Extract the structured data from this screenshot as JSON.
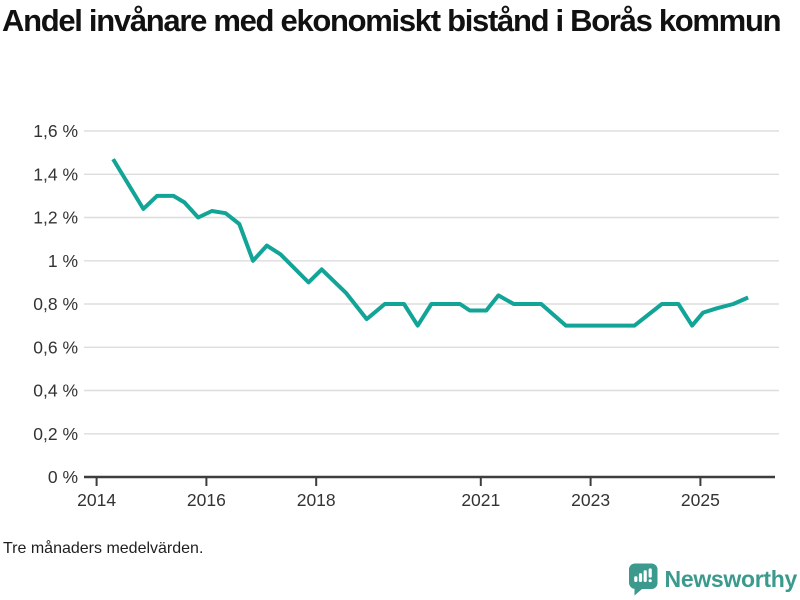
{
  "title": "Andel invånare med ekonomiskt bistånd i Borås kommun",
  "footnote": "Tre månaders medelvärden.",
  "logo": {
    "name": "Newsworthy",
    "color": "#3b9a8d"
  },
  "colors": {
    "background": "#ffffff",
    "title_text": "#111111",
    "tick_text": "#333333",
    "gridline": "#dddddd",
    "axis": "#3d3d3d",
    "line": "#12a496",
    "footnote_text": "#1f1f1f",
    "logo_teal": "#3b9a8d"
  },
  "chart_data": {
    "type": "line",
    "title": "Andel invånare med ekonomiskt bistånd i Borås kommun",
    "xlabel": "",
    "ylabel": "",
    "unit": "%",
    "xlim": [
      2013.77,
      2026.36
    ],
    "ylim": [
      0,
      1.6
    ],
    "grid": "horizontal",
    "legend": "none",
    "x_ticks": [
      {
        "pos": 2014,
        "label": "2014"
      },
      {
        "pos": 2016,
        "label": "2016"
      },
      {
        "pos": 2018,
        "label": "2018"
      },
      {
        "pos": 2021,
        "label": "2021"
      },
      {
        "pos": 2023,
        "label": "2023"
      },
      {
        "pos": 2025,
        "label": "2025"
      }
    ],
    "y_ticks": [
      {
        "value": 1.6,
        "label": "1,6 %"
      },
      {
        "value": 1.4,
        "label": "1,4 %"
      },
      {
        "value": 1.2,
        "label": "1,2 %"
      },
      {
        "value": 1.0,
        "label": "1 %"
      },
      {
        "value": 0.8,
        "label": "0,8 %"
      },
      {
        "value": 0.6,
        "label": "0,6 %"
      },
      {
        "value": 0.4,
        "label": "0,4 %"
      },
      {
        "value": 0.2,
        "label": "0,2 %"
      },
      {
        "value": 0,
        "label": "0 %"
      }
    ],
    "series": [
      {
        "name": "Andel invånare med ekonomiskt bistånd i Borås kommun (tre månaders medelvärden, %)",
        "color": "#12a496",
        "points": [
          [
            2014.3,
            1.47
          ],
          [
            2014.85,
            1.24
          ],
          [
            2015.1,
            1.3
          ],
          [
            2015.4,
            1.3
          ],
          [
            2015.6,
            1.27
          ],
          [
            2015.85,
            1.2
          ],
          [
            2016.1,
            1.23
          ],
          [
            2016.35,
            1.22
          ],
          [
            2016.6,
            1.17
          ],
          [
            2016.85,
            1.0
          ],
          [
            2017.1,
            1.07
          ],
          [
            2017.35,
            1.03
          ],
          [
            2017.86,
            0.9
          ],
          [
            2018.1,
            0.96
          ],
          [
            2018.55,
            0.85
          ],
          [
            2018.92,
            0.73
          ],
          [
            2019.25,
            0.8
          ],
          [
            2019.6,
            0.8
          ],
          [
            2019.85,
            0.7
          ],
          [
            2020.1,
            0.8
          ],
          [
            2020.62,
            0.8
          ],
          [
            2020.8,
            0.77
          ],
          [
            2021.1,
            0.77
          ],
          [
            2021.32,
            0.84
          ],
          [
            2021.6,
            0.8
          ],
          [
            2022.1,
            0.8
          ],
          [
            2022.55,
            0.7
          ],
          [
            2023.8,
            0.7
          ],
          [
            2024.3,
            0.8
          ],
          [
            2024.6,
            0.8
          ],
          [
            2024.85,
            0.7
          ],
          [
            2025.05,
            0.76
          ],
          [
            2025.3,
            0.78
          ],
          [
            2025.6,
            0.8
          ],
          [
            2025.87,
            0.83
          ]
        ]
      }
    ]
  }
}
